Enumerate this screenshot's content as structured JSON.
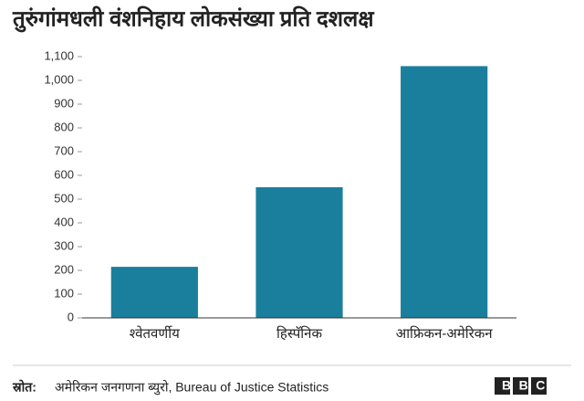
{
  "chart_data": {
    "type": "bar",
    "title": "तुरुंगांमधली वंशनिहाय लोकसंख्या प्रति दशलक्ष",
    "categories": [
      "श्वेतवर्णीय",
      "हिस्पॅनिक",
      "आफ्रिकन-अमेरिकन"
    ],
    "values": [
      215,
      550,
      1060
    ],
    "color": "#1a7f9c",
    "ylim": [
      0,
      1100
    ],
    "yticks": [
      0,
      100,
      200,
      300,
      400,
      500,
      600,
      700,
      800,
      900,
      {
        "value": 1000,
        "label": "1,000"
      },
      {
        "value": 1100,
        "label": "1,100"
      }
    ],
    "grid": false,
    "source_label": "स्रोत:",
    "source": "अमेरिकन जनगणना ब्युरो, Bureau of Justice Statistics",
    "logo": "BBC"
  }
}
